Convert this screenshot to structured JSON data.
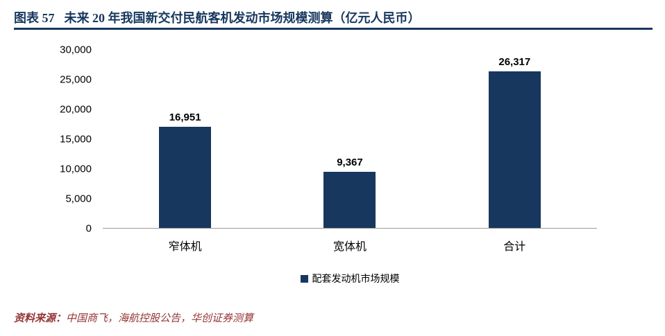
{
  "header": {
    "label": "图表 57",
    "title": "未来 20 年我国新交付民航客机发动市场规模测算（亿元人民币）"
  },
  "chart_data": {
    "type": "bar",
    "title": "未来 20 年我国新交付民航客机发动市场规模测算（亿元人民币）",
    "categories": [
      "窄体机",
      "宽体机",
      "合计"
    ],
    "values": [
      16951,
      9367,
      26317
    ],
    "value_labels": [
      "16,951",
      "9,367",
      "26,317"
    ],
    "ylim": [
      0,
      30000
    ],
    "ytick_interval": 5000,
    "yticks_top_to_bottom": [
      "30,000",
      "25,000",
      "20,000",
      "15,000",
      "10,000",
      "5,000",
      "0"
    ],
    "grid": false,
    "legend_label": "配套发动机市场规模",
    "legend_position": "bottom",
    "bar_color": "#17375e",
    "xlabel": "",
    "ylabel": ""
  },
  "footer": {
    "label": "资料来源：",
    "text": "中国商飞，海航控股公告，华创证券测算"
  },
  "colors": {
    "accent_navy": "#17375e",
    "source_red": "#943634",
    "axis_line_gray": "#9b9b9b",
    "text_black": "#000000",
    "background": "#ffffff"
  }
}
